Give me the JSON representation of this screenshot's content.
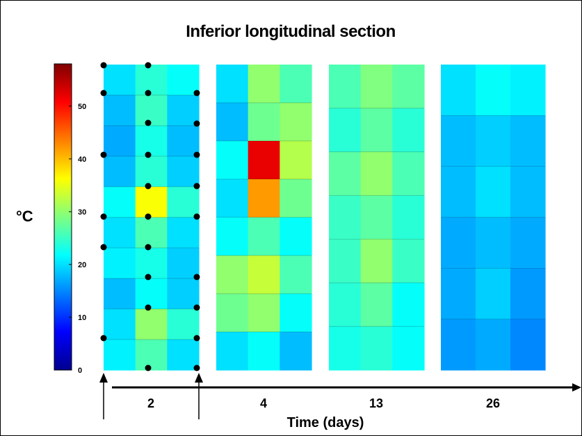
{
  "chart_data": {
    "type": "heatmap",
    "title": "Inferior longitudinal section",
    "xlabel": "Time (days)",
    "colorbar_label": "°C",
    "colorbar_range": [
      0,
      58
    ],
    "colorbar_ticks": [
      "0",
      "10",
      "20",
      "30",
      "40",
      "50"
    ],
    "colormap": "jet",
    "grid": false,
    "panels": [
      {
        "time_label": "2",
        "values": [
          [
            20,
            24,
            22
          ],
          [
            18,
            25,
            19
          ],
          [
            17,
            23,
            18
          ],
          [
            18,
            24,
            19
          ],
          [
            22,
            36,
            24
          ],
          [
            20,
            26,
            20
          ],
          [
            21,
            23,
            19
          ],
          [
            18,
            22,
            19
          ],
          [
            20,
            30,
            24
          ],
          [
            21,
            26,
            20
          ]
        ]
      },
      {
        "time_label": "4",
        "values": [
          [
            20,
            30,
            26
          ],
          [
            18,
            28,
            30
          ],
          [
            22,
            52,
            32
          ],
          [
            20,
            42,
            28
          ],
          [
            22,
            26,
            22
          ],
          [
            30,
            33,
            26
          ],
          [
            28,
            30,
            22
          ],
          [
            20,
            22,
            18
          ]
        ]
      },
      {
        "time_label": "13",
        "values": [
          [
            26,
            29,
            27
          ],
          [
            24,
            27,
            24
          ],
          [
            27,
            30,
            26
          ],
          [
            25,
            27,
            24
          ],
          [
            25,
            30,
            25
          ],
          [
            24,
            27,
            22
          ],
          [
            23,
            24,
            22
          ]
        ]
      },
      {
        "time_label": "26",
        "values": [
          [
            20,
            22,
            21
          ],
          [
            18,
            19,
            18
          ],
          [
            18,
            20,
            18
          ],
          [
            17,
            18,
            17
          ],
          [
            17,
            19,
            16
          ],
          [
            16,
            17,
            15
          ]
        ]
      }
    ],
    "sensor_markers": true
  }
}
